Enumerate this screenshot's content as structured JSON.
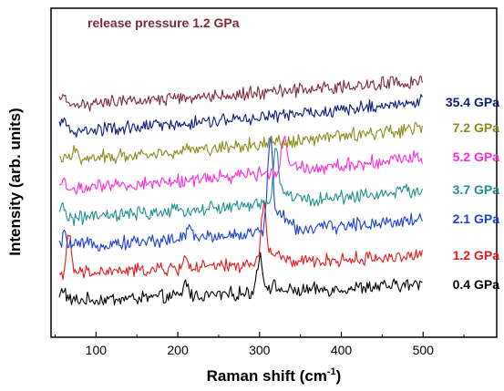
{
  "chart_data": {
    "type": "line",
    "title": "",
    "xlabel": "Raman shift (cm",
    "xlabel_sup": "-1",
    "xlabel_suffix": ")",
    "ylabel": "Intensity (arb. units)",
    "xlim": [
      45,
      590
    ],
    "xticks": [
      100,
      200,
      300,
      400,
      500
    ],
    "yticks_shown": false,
    "peaks": [
      300,
      305,
      313,
      320,
      325,
      330
    ],
    "series": [
      {
        "name": "0.4 GPa",
        "color": "#000000",
        "baseline": 40,
        "end": 58,
        "peak_x": 300,
        "peak_h": 38,
        "bumps": [
          [
            60,
            14
          ],
          [
            210,
            16
          ]
        ]
      },
      {
        "name": "1.2 GPa",
        "color": "#e41a1c",
        "baseline": 70,
        "end": 90,
        "peak_x": 305,
        "peak_h": 60,
        "bumps": [
          [
            67,
            40
          ],
          [
            210,
            13
          ]
        ]
      },
      {
        "name": "2.1 GPa",
        "color": "#1a3fd6",
        "baseline": 100,
        "end": 130,
        "peak_x": 313,
        "peak_h": 95,
        "bumps": [
          [
            62,
            12
          ],
          [
            215,
            14
          ]
        ]
      },
      {
        "name": "3.7 GPa",
        "color": "#1f8f8f",
        "baseline": 130,
        "end": 162,
        "peak_x": 320,
        "peak_h": 55,
        "bumps": [
          [
            60,
            14
          ]
        ]
      },
      {
        "name": "5.2 GPa",
        "color": "#ff2bd8",
        "baseline": 162,
        "end": 198,
        "peak_x": 330,
        "peak_h": 35,
        "bumps": [
          [
            60,
            10
          ]
        ]
      },
      {
        "name": "7.2 GPa",
        "color": "#8a8a1c",
        "baseline": 195,
        "end": 230,
        "peak_x": 325,
        "peak_h": 0,
        "bumps": [
          [
            75,
            12
          ]
        ]
      },
      {
        "name": "35.4 GPa",
        "color": "#0d1b7a",
        "baseline": 225,
        "end": 258,
        "peak_x": 325,
        "peak_h": 0,
        "bumps": [
          [
            60,
            16
          ]
        ]
      },
      {
        "name": "release pressure 1.2 GPa",
        "color": "#7b2a3c",
        "baseline": 255,
        "end": 282,
        "peak_x": 325,
        "peak_h": 0,
        "bumps": [
          [
            60,
            8
          ]
        ]
      }
    ]
  }
}
